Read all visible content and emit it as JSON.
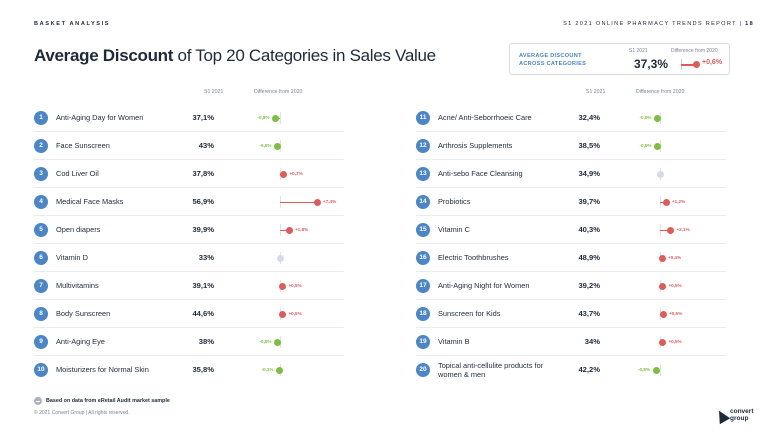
{
  "header": {
    "section": "BASKET ANALYSIS",
    "report": "S1 2021 ONLINE PHARMACY TRENDS REPORT",
    "separator": "|",
    "page": "18"
  },
  "title": {
    "bold": "Average Discount",
    "rest": " of Top 20 Categories in Sales Value"
  },
  "summary": {
    "label_line1": "AVERAGE DISCOUNT",
    "label_line2": "ACROSS CATEGORIES",
    "col_s1": "S1 2021",
    "col_diff": "Difference from 2020",
    "value": "37,3%",
    "diff_label": "+0,6%",
    "diff": 0.6
  },
  "columns": {
    "s1": "S1 2021",
    "diff": "Difference from 2020"
  },
  "colors": {
    "positive": "#e05a5a",
    "negative": "#7cbf3f",
    "neutral": "#d6dbe8",
    "accent": "#4a86c8"
  },
  "chart_data": {
    "type": "table",
    "title": "Average Discount of Top 20 Categories in Sales Value",
    "columns": [
      "S1 2021",
      "Difference from 2020"
    ],
    "rows": [
      {
        "rank": "1",
        "category": "Anti-Aging Day for Women",
        "value": "37,1%",
        "diff": -0.9,
        "diff_label": "-0,9%"
      },
      {
        "rank": "2",
        "category": "Face Sunscreen",
        "value": "43%",
        "diff": -0.5,
        "diff_label": "-0,5%"
      },
      {
        "rank": "3",
        "category": "Cod Liver Oil",
        "value": "37,8%",
        "diff": 0.7,
        "diff_label": "+0,7%"
      },
      {
        "rank": "4",
        "category": "Medical Face Masks",
        "value": "56,9%",
        "diff": 7.4,
        "diff_label": "+7,4%"
      },
      {
        "rank": "5",
        "category": "Open diapers",
        "value": "39,9%",
        "diff": 1.8,
        "diff_label": "+1,8%"
      },
      {
        "rank": "6",
        "category": "Vitamin D",
        "value": "33%",
        "diff": 0,
        "diff_label": ""
      },
      {
        "rank": "7",
        "category": "Multivitamins",
        "value": "39,1%",
        "diff": 0.5,
        "diff_label": "+0,5%"
      },
      {
        "rank": "8",
        "category": "Body Sunscreen",
        "value": "44,6%",
        "diff": 0.5,
        "diff_label": "+0,5%"
      },
      {
        "rank": "9",
        "category": "Anti-Aging Eye",
        "value": "38%",
        "diff": -0.5,
        "diff_label": "-0,5%"
      },
      {
        "rank": "10",
        "category": "Moisturizers for Normal Skin",
        "value": "35,8%",
        "diff": -0.1,
        "diff_label": "-0,1%"
      },
      {
        "rank": "11",
        "category": "Acne/ Anti-Seborrhoeic Care",
        "value": "32,4%",
        "diff": -0.5,
        "diff_label": "-0,5%"
      },
      {
        "rank": "12",
        "category": "Arthrosis Supplements",
        "value": "38,5%",
        "diff": -0.5,
        "diff_label": "-0,5%"
      },
      {
        "rank": "13",
        "category": "Anti-sebo Face Cleansing",
        "value": "34,9%",
        "diff": 0,
        "diff_label": ""
      },
      {
        "rank": "14",
        "category": "Probiotics",
        "value": "39,7%",
        "diff": 1.2,
        "diff_label": "+1,2%"
      },
      {
        "rank": "15",
        "category": "Vitamin C",
        "value": "40,3%",
        "diff": 2.1,
        "diff_label": "+2,1%"
      },
      {
        "rank": "16",
        "category": "Electric Toothbrushes",
        "value": "48,9%",
        "diff": 0.4,
        "diff_label": "+0,4%"
      },
      {
        "rank": "17",
        "category": "Anti-Aging Night for Women",
        "value": "39,2%",
        "diff": 0.5,
        "diff_label": "+0,5%"
      },
      {
        "rank": "18",
        "category": "Sunscreen for Kids",
        "value": "43,7%",
        "diff": 0.6,
        "diff_label": "+0,6%"
      },
      {
        "rank": "19",
        "category": "Vitamin B",
        "value": "34%",
        "diff": 0.5,
        "diff_label": "+0,5%"
      },
      {
        "rank": "20",
        "category": "Topical anti-cellulite products for women & men",
        "value": "42,2%",
        "diff": -0.8,
        "diff_label": "-0,8%"
      }
    ]
  },
  "footnote": "Based on data from eRetail Audit market sample",
  "footnote_icon": "info-icon",
  "copyright": "© 2021 Convert Group  |  All rights reserved.",
  "logo": {
    "line1": "convert",
    "line2": "group"
  }
}
